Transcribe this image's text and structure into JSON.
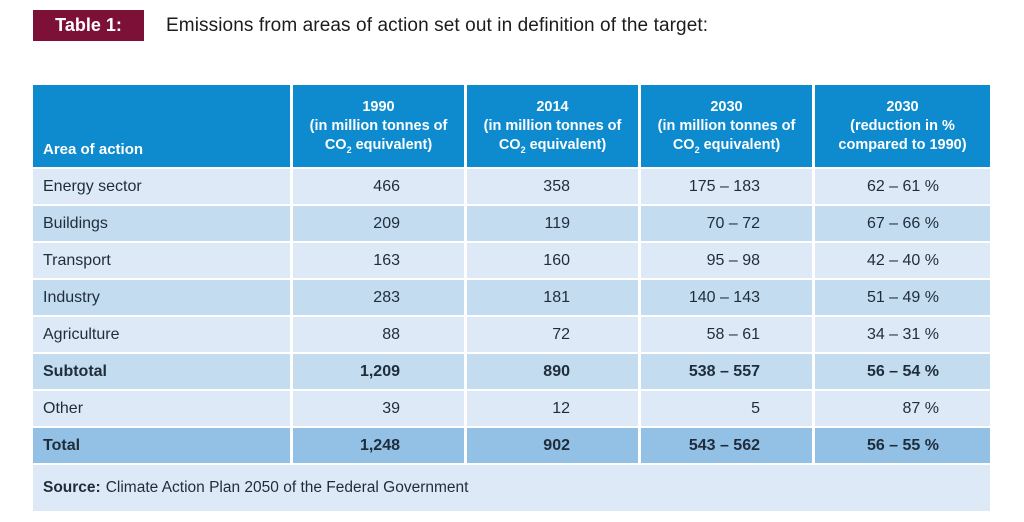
{
  "title": {
    "badge": "Table 1:",
    "caption": "Emissions from areas of action set out in definition of the target:"
  },
  "colors": {
    "header_bg": "#0d8bce",
    "row_light": "#dde9f6",
    "row_medium": "#c3dcf0",
    "row_total": "#93c1e6",
    "badge_bg": "#7c1037",
    "text": "#1f2d3a"
  },
  "header": {
    "area": "Area of action",
    "cols": [
      {
        "line1": "1990",
        "line2": "(in million tonnes of",
        "l3pre": "CO",
        "l3sub": "2",
        "l3post": " equivalent)"
      },
      {
        "line1": "2014",
        "line2": "(in million tonnes of",
        "l3pre": "CO",
        "l3sub": "2",
        "l3post": " equivalent)"
      },
      {
        "line1": "2030",
        "line2": "(in million tonnes of",
        "l3pre": "CO",
        "l3sub": "2",
        "l3post": " equivalent)"
      },
      {
        "line1": "2030",
        "line2": "(reduction in %",
        "l3pre": "compared to 1990)",
        "l3sub": "",
        "l3post": ""
      }
    ]
  },
  "rows": [
    {
      "area": "Energy sector",
      "y1990": "466",
      "y2014": "358",
      "y2030": "175 – 183",
      "red2030": "62 – 61 %"
    },
    {
      "area": "Buildings",
      "y1990": "209",
      "y2014": "119",
      "y2030": "70 – 72",
      "red2030": "67 – 66 %"
    },
    {
      "area": "Transport",
      "y1990": "163",
      "y2014": "160",
      "y2030": "95 – 98",
      "red2030": "42 – 40 %"
    },
    {
      "area": "Industry",
      "y1990": "283",
      "y2014": "181",
      "y2030": "140 – 143",
      "red2030": "51 – 49 %"
    },
    {
      "area": "Agriculture",
      "y1990": "88",
      "y2014": "72",
      "y2030": "58 – 61",
      "red2030": "34 – 31 %"
    },
    {
      "area": "Subtotal",
      "y1990": "1,209",
      "y2014": "890",
      "y2030": "538 – 557",
      "red2030": "56 – 54 %"
    },
    {
      "area": "Other",
      "y1990": "39",
      "y2014": "12",
      "y2030": "5",
      "red2030": "87 %"
    },
    {
      "area": "Total",
      "y1990": "1,248",
      "y2014": "902",
      "y2030": "543 – 562",
      "red2030": "56 – 55 %"
    }
  ],
  "source": {
    "label": "Source:",
    "text": "Climate Action Plan 2050 of the Federal Government"
  }
}
